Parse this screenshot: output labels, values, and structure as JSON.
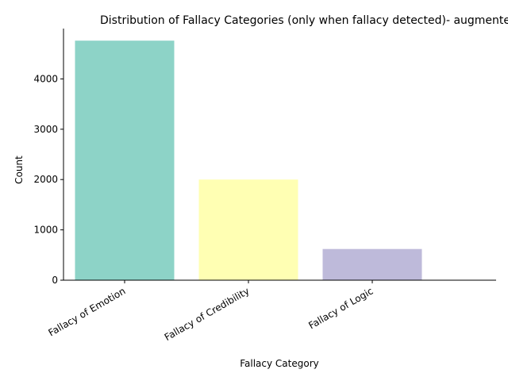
{
  "chart_data": {
    "type": "bar",
    "title": "Distribution of Fallacy Categories (only when fallacy detected)- augmented",
    "xlabel": "Fallacy Category",
    "ylabel": "Count",
    "bars": [
      {
        "value": 4760,
        "color": "#8dd3c7"
      },
      {
        "value": 2000,
        "color": "#ffffb3"
      },
      {
        "value": 620,
        "color": "#bebada"
      }
    ],
    "x_tick_labels": [
      "Fallacy of Emotion",
      "Fallacy of Credibility",
      "Fallacy of Logic"
    ],
    "yticks": [
      0,
      1000,
      2000,
      3000,
      4000
    ],
    "ylim": [
      0,
      5000
    ],
    "grid": false,
    "legend": "none"
  }
}
